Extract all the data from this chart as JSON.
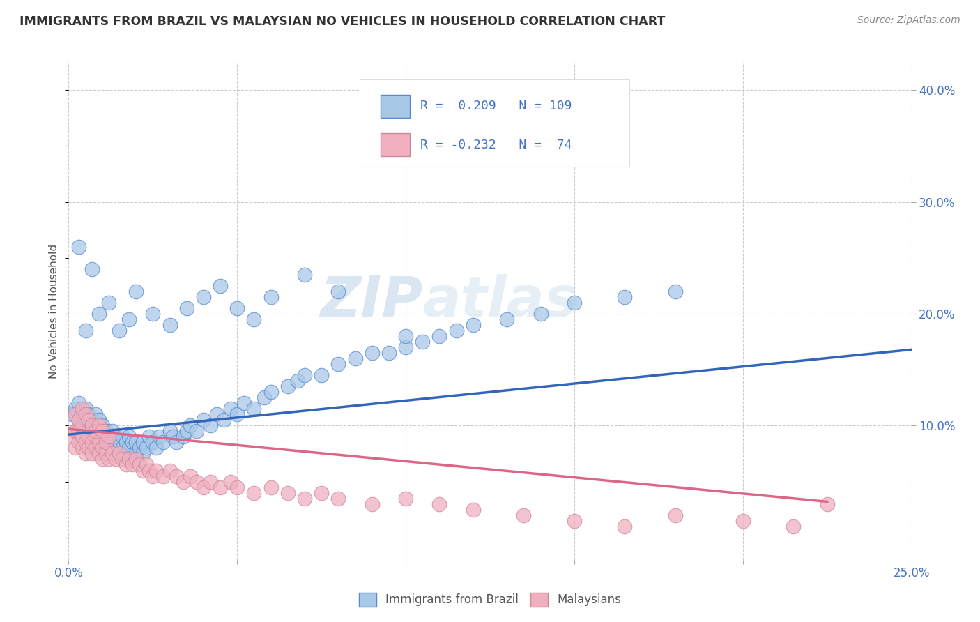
{
  "title": "IMMIGRANTS FROM BRAZIL VS MALAYSIAN NO VEHICLES IN HOUSEHOLD CORRELATION CHART",
  "source": "Source: ZipAtlas.com",
  "ylabel": "No Vehicles in Household",
  "xmin": 0.0,
  "xmax": 0.25,
  "ymin": -0.02,
  "ymax": 0.425,
  "yticks_right": [
    0.1,
    0.2,
    0.3,
    0.4
  ],
  "ytick_right_labels": [
    "10.0%",
    "20.0%",
    "30.0%",
    "40.0%"
  ],
  "xticks": [
    0.0,
    0.05,
    0.1,
    0.15,
    0.2,
    0.25
  ],
  "xtick_labels": [
    "0.0%",
    "",
    "",
    "",
    "",
    "25.0%"
  ],
  "legend_r1": "R =  0.209   N = 109",
  "legend_r2": "R = -0.232   N =  74",
  "color_blue": "#a8c8e8",
  "color_blue_line": "#3366bb",
  "color_blue_edge": "#5588cc",
  "color_pink": "#f0b0c0",
  "color_pink_line": "#dd6688",
  "color_pink_edge": "#cc8899",
  "color_legend_text": "#4472c4",
  "background": "#ffffff",
  "grid_color": "#cccccc",
  "title_color": "#333333",
  "watermark": "ZIPatlas",
  "brazil_trend_x": [
    0.0,
    0.25
  ],
  "brazil_trend_y": [
    0.092,
    0.168
  ],
  "malay_trend_x": [
    0.0,
    0.225
  ],
  "malay_trend_y": [
    0.097,
    0.032
  ],
  "brazil_x": [
    0.001,
    0.002,
    0.002,
    0.003,
    0.003,
    0.003,
    0.004,
    0.004,
    0.004,
    0.005,
    0.005,
    0.005,
    0.006,
    0.006,
    0.006,
    0.007,
    0.007,
    0.007,
    0.008,
    0.008,
    0.008,
    0.009,
    0.009,
    0.009,
    0.01,
    0.01,
    0.01,
    0.011,
    0.011,
    0.012,
    0.012,
    0.013,
    0.013,
    0.014,
    0.014,
    0.015,
    0.015,
    0.016,
    0.016,
    0.017,
    0.017,
    0.018,
    0.018,
    0.019,
    0.02,
    0.02,
    0.021,
    0.022,
    0.022,
    0.023,
    0.024,
    0.025,
    0.026,
    0.027,
    0.028,
    0.03,
    0.031,
    0.032,
    0.034,
    0.035,
    0.036,
    0.038,
    0.04,
    0.042,
    0.044,
    0.046,
    0.048,
    0.05,
    0.052,
    0.055,
    0.058,
    0.06,
    0.065,
    0.068,
    0.07,
    0.075,
    0.08,
    0.085,
    0.09,
    0.095,
    0.1,
    0.105,
    0.11,
    0.115,
    0.12,
    0.13,
    0.14,
    0.15,
    0.165,
    0.18,
    0.003,
    0.005,
    0.007,
    0.009,
    0.012,
    0.015,
    0.018,
    0.02,
    0.025,
    0.03,
    0.035,
    0.04,
    0.045,
    0.05,
    0.055,
    0.06,
    0.07,
    0.08,
    0.1
  ],
  "brazil_y": [
    0.11,
    0.115,
    0.095,
    0.105,
    0.095,
    0.12,
    0.1,
    0.09,
    0.11,
    0.095,
    0.105,
    0.115,
    0.09,
    0.1,
    0.11,
    0.085,
    0.095,
    0.105,
    0.09,
    0.1,
    0.11,
    0.085,
    0.095,
    0.105,
    0.08,
    0.09,
    0.1,
    0.085,
    0.095,
    0.08,
    0.09,
    0.085,
    0.095,
    0.08,
    0.09,
    0.075,
    0.085,
    0.08,
    0.09,
    0.075,
    0.085,
    0.08,
    0.09,
    0.085,
    0.075,
    0.085,
    0.08,
    0.075,
    0.085,
    0.08,
    0.09,
    0.085,
    0.08,
    0.09,
    0.085,
    0.095,
    0.09,
    0.085,
    0.09,
    0.095,
    0.1,
    0.095,
    0.105,
    0.1,
    0.11,
    0.105,
    0.115,
    0.11,
    0.12,
    0.115,
    0.125,
    0.13,
    0.135,
    0.14,
    0.145,
    0.145,
    0.155,
    0.16,
    0.165,
    0.165,
    0.17,
    0.175,
    0.18,
    0.185,
    0.19,
    0.195,
    0.2,
    0.21,
    0.215,
    0.22,
    0.26,
    0.185,
    0.24,
    0.2,
    0.21,
    0.185,
    0.195,
    0.22,
    0.2,
    0.19,
    0.205,
    0.215,
    0.225,
    0.205,
    0.195,
    0.215,
    0.235,
    0.22,
    0.18
  ],
  "malay_x": [
    0.001,
    0.002,
    0.002,
    0.003,
    0.003,
    0.004,
    0.004,
    0.005,
    0.005,
    0.006,
    0.006,
    0.007,
    0.007,
    0.008,
    0.008,
    0.009,
    0.009,
    0.01,
    0.01,
    0.011,
    0.011,
    0.012,
    0.013,
    0.014,
    0.015,
    0.016,
    0.017,
    0.018,
    0.019,
    0.02,
    0.021,
    0.022,
    0.023,
    0.024,
    0.025,
    0.026,
    0.028,
    0.03,
    0.032,
    0.034,
    0.036,
    0.038,
    0.04,
    0.042,
    0.045,
    0.048,
    0.05,
    0.055,
    0.06,
    0.065,
    0.07,
    0.075,
    0.08,
    0.09,
    0.1,
    0.11,
    0.12,
    0.135,
    0.15,
    0.165,
    0.18,
    0.2,
    0.215,
    0.225,
    0.002,
    0.003,
    0.004,
    0.005,
    0.006,
    0.007,
    0.008,
    0.009,
    0.01,
    0.012
  ],
  "malay_y": [
    0.09,
    0.095,
    0.08,
    0.085,
    0.095,
    0.08,
    0.09,
    0.075,
    0.085,
    0.08,
    0.09,
    0.075,
    0.085,
    0.08,
    0.09,
    0.075,
    0.085,
    0.07,
    0.08,
    0.075,
    0.085,
    0.07,
    0.075,
    0.07,
    0.075,
    0.07,
    0.065,
    0.07,
    0.065,
    0.07,
    0.065,
    0.06,
    0.065,
    0.06,
    0.055,
    0.06,
    0.055,
    0.06,
    0.055,
    0.05,
    0.055,
    0.05,
    0.045,
    0.05,
    0.045,
    0.05,
    0.045,
    0.04,
    0.045,
    0.04,
    0.035,
    0.04,
    0.035,
    0.03,
    0.035,
    0.03,
    0.025,
    0.02,
    0.015,
    0.01,
    0.02,
    0.015,
    0.01,
    0.03,
    0.11,
    0.105,
    0.115,
    0.11,
    0.105,
    0.1,
    0.095,
    0.1,
    0.095,
    0.09
  ]
}
